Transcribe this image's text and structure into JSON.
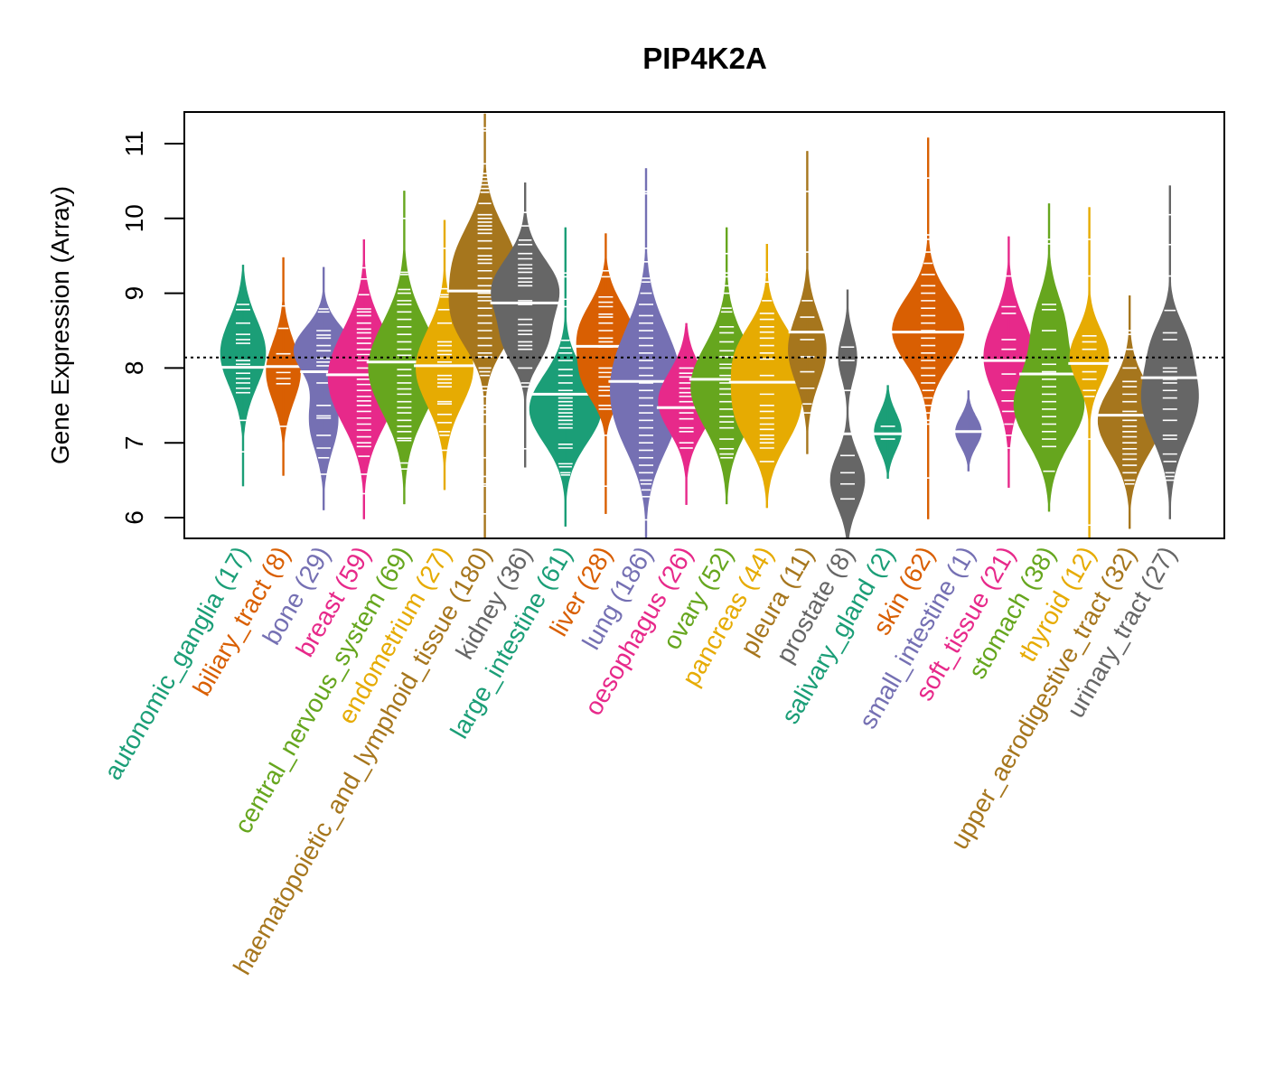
{
  "chart_data": {
    "type": "violin",
    "title": "PIP4K2A",
    "xlabel": "",
    "ylabel": "Gene Expression (Array)",
    "ylim": [
      5.7,
      11.4
    ],
    "yticks": [
      6,
      7,
      8,
      9,
      10,
      11
    ],
    "reference_line": 8.14,
    "grid": false,
    "legend": "none",
    "categories": [
      {
        "name": "autonomic_ganglia",
        "n": 17,
        "color": "#1B9E77",
        "min": 6.42,
        "max": 9.38,
        "median": 8.01,
        "modes": [
          [
            8.2,
            0.45,
            1.0
          ]
        ],
        "points": [
          8.85,
          8.78,
          8.6,
          8.45,
          8.38,
          8.33,
          8.1,
          8.05,
          7.93,
          7.86,
          7.8,
          7.73,
          7.67,
          7.3,
          6.88
        ]
      },
      {
        "name": "biliary_tract",
        "n": 8,
        "color": "#D95F02",
        "min": 6.56,
        "max": 9.48,
        "median": 8.02,
        "modes": [
          [
            7.95,
            0.4,
            1.0
          ]
        ],
        "points": [
          8.83,
          8.53,
          8.19,
          7.94,
          7.86,
          7.79,
          7.22
        ]
      },
      {
        "name": "bone",
        "n": 29,
        "color": "#7570B3",
        "min": 6.1,
        "max": 9.35,
        "median": 7.95,
        "modes": [
          [
            8.25,
            0.3,
            1.0
          ],
          [
            7.3,
            0.4,
            0.5
          ]
        ],
        "points": [
          8.79,
          8.75,
          8.5,
          8.44,
          8.4,
          8.3,
          8.23,
          8.13,
          8.08,
          8.03,
          7.8,
          7.5,
          7.36,
          7.33,
          7.1,
          6.93,
          6.8,
          6.58
        ]
      },
      {
        "name": "breast",
        "n": 59,
        "color": "#E7298A",
        "min": 5.98,
        "max": 9.72,
        "median": 7.91,
        "modes": [
          [
            8.2,
            0.5,
            0.7
          ],
          [
            7.6,
            0.5,
            0.8
          ]
        ],
        "points": [
          9.34,
          9.19,
          8.98,
          8.79,
          8.75,
          8.7,
          8.6,
          8.52,
          8.47,
          8.4,
          8.33,
          8.25,
          8.18,
          8.1,
          8.0,
          7.85,
          7.78,
          7.7,
          7.62,
          7.56,
          7.5,
          7.42,
          7.33,
          7.25,
          7.17,
          7.08,
          7.0,
          6.95,
          6.82,
          6.58,
          6.32
        ]
      },
      {
        "name": "central_nervous_system",
        "n": 69,
        "color": "#66A61E",
        "min": 6.18,
        "max": 10.37,
        "median": 8.08,
        "modes": [
          [
            8.0,
            0.6,
            1.0
          ]
        ],
        "points": [
          10.0,
          9.28,
          9.25,
          9.05,
          9.0,
          8.9,
          8.85,
          8.75,
          8.65,
          8.55,
          8.45,
          8.35,
          8.25,
          8.17,
          8.08,
          7.98,
          7.9,
          7.8,
          7.72,
          7.65,
          7.55,
          7.47,
          7.4,
          7.3,
          7.22,
          7.15,
          7.06,
          7.03,
          6.73,
          6.65
        ]
      },
      {
        "name": "endometrium",
        "n": 27,
        "color": "#E6AB02",
        "min": 6.37,
        "max": 9.98,
        "median": 8.03,
        "modes": [
          [
            8.0,
            0.5,
            1.0
          ]
        ],
        "points": [
          9.6,
          9.06,
          8.98,
          8.95,
          8.78,
          8.6,
          8.35,
          8.3,
          8.23,
          8.18,
          8.08,
          7.9,
          7.85,
          7.8,
          7.75,
          7.55,
          7.52,
          7.38,
          7.27,
          7.15,
          7.1,
          6.9
        ]
      },
      {
        "name": "haematopoietic_and_lymphoid_tissue",
        "n": 180,
        "color": "#A6761D",
        "min": 5.7,
        "max": 11.4,
        "median": 9.03,
        "modes": [
          [
            9.4,
            0.5,
            1.0
          ],
          [
            8.6,
            0.4,
            0.8
          ]
        ],
        "points": [
          11.21,
          11.17,
          10.73,
          10.6,
          10.55,
          10.5,
          10.45,
          10.4,
          10.35,
          10.2,
          10.05,
          10.0,
          9.95,
          9.9,
          9.85,
          9.8,
          9.7,
          9.6,
          9.5,
          9.45,
          9.4,
          9.3,
          9.2,
          9.1,
          9.0,
          8.95,
          8.9,
          8.8,
          8.7,
          8.6,
          8.5,
          8.4,
          8.3,
          8.2,
          8.15,
          8.0,
          7.95,
          7.9,
          7.75,
          7.7,
          7.62,
          7.5,
          7.45,
          7.38,
          7.25,
          6.8,
          6.55,
          6.45,
          6.42,
          6.05
        ]
      },
      {
        "name": "kidney",
        "n": 36,
        "color": "#666666",
        "min": 6.67,
        "max": 10.48,
        "median": 8.87,
        "modes": [
          [
            9.05,
            0.4,
            1.0
          ],
          [
            8.3,
            0.3,
            0.5
          ]
        ],
        "points": [
          10.08,
          9.9,
          9.71,
          9.65,
          9.53,
          9.46,
          9.38,
          9.33,
          9.28,
          9.2,
          9.15,
          9.1,
          8.9,
          8.85,
          8.65,
          8.58,
          8.5,
          8.45,
          8.35,
          8.3,
          8.25,
          8.0,
          7.8,
          7.75,
          6.92
        ]
      },
      {
        "name": "large_intestine",
        "n": 61,
        "color": "#1B9E77",
        "min": 5.88,
        "max": 9.88,
        "median": 7.65,
        "modes": [
          [
            7.45,
            0.45,
            1.0
          ]
        ],
        "points": [
          9.27,
          9.22,
          8.92,
          8.82,
          8.37,
          8.27,
          8.2,
          8.1,
          7.98,
          7.9,
          7.8,
          7.7,
          7.6,
          7.55,
          7.5,
          7.45,
          7.4,
          7.35,
          7.3,
          7.25,
          7.2,
          6.98,
          6.93,
          6.72,
          6.68,
          6.6,
          6.57
        ]
      },
      {
        "name": "liver",
        "n": 28,
        "color": "#D95F02",
        "min": 6.05,
        "max": 9.8,
        "median": 8.29,
        "modes": [
          [
            8.45,
            0.4,
            1.0
          ],
          [
            7.8,
            0.3,
            0.6
          ]
        ],
        "points": [
          9.3,
          9.22,
          8.95,
          8.88,
          8.82,
          8.72,
          8.68,
          8.6,
          8.5,
          8.4,
          8.35,
          8.28,
          8.0,
          7.94,
          7.88,
          7.75,
          7.7,
          7.63,
          7.5,
          7.45,
          7.1,
          6.42
        ]
      },
      {
        "name": "lung",
        "n": 186,
        "color": "#7570B3",
        "min": 5.7,
        "max": 10.67,
        "median": 7.82,
        "modes": [
          [
            8.0,
            0.6,
            1.0
          ],
          [
            7.2,
            0.5,
            0.6
          ]
        ],
        "points": [
          10.36,
          10.33,
          9.6,
          9.42,
          9.2,
          9.15,
          9.0,
          8.85,
          8.7,
          8.6,
          8.5,
          8.4,
          8.3,
          8.2,
          8.1,
          8.0,
          7.9,
          7.8,
          7.7,
          7.6,
          7.5,
          7.4,
          7.3,
          7.2,
          7.1,
          7.0,
          6.9,
          6.8,
          6.7,
          6.6,
          6.5,
          6.45,
          6.37,
          6.28,
          5.97
        ]
      },
      {
        "name": "oesophagus",
        "n": 26,
        "color": "#E7298A",
        "min": 6.17,
        "max": 8.6,
        "median": 7.47,
        "modes": [
          [
            7.55,
            0.4,
            1.0
          ]
        ],
        "points": [
          8.0,
          7.93,
          7.88,
          7.8,
          7.73,
          7.67,
          7.62,
          7.55,
          7.4,
          7.32,
          7.2,
          7.15,
          7.0,
          6.93
        ]
      },
      {
        "name": "ovary",
        "n": 52,
        "color": "#66A61E",
        "min": 6.18,
        "max": 9.88,
        "median": 7.85,
        "modes": [
          [
            7.75,
            0.55,
            1.0
          ]
        ],
        "points": [
          9.53,
          9.27,
          9.22,
          9.1,
          9.0,
          8.8,
          8.75,
          8.55,
          8.47,
          8.35,
          8.23,
          8.15,
          8.05,
          8.0,
          7.9,
          7.8,
          7.72,
          7.65,
          7.55,
          7.45,
          7.35,
          7.28,
          7.2,
          7.05,
          6.92,
          6.85,
          6.8
        ]
      },
      {
        "name": "pancreas",
        "n": 44,
        "color": "#E6AB02",
        "min": 6.13,
        "max": 9.66,
        "median": 7.81,
        "modes": [
          [
            8.2,
            0.4,
            0.8
          ],
          [
            7.4,
            0.45,
            0.9
          ]
        ],
        "points": [
          9.28,
          9.15,
          8.9,
          8.73,
          8.65,
          8.55,
          8.48,
          8.4,
          8.3,
          8.2,
          8.12,
          7.9,
          7.65,
          7.5,
          7.42,
          7.33,
          7.25,
          7.18,
          7.1,
          7.05,
          7.0,
          6.93,
          6.75
        ]
      },
      {
        "name": "pleura",
        "n": 11,
        "color": "#A6761D",
        "min": 6.85,
        "max": 10.9,
        "median": 8.48,
        "modes": [
          [
            8.25,
            0.45,
            1.0
          ]
        ],
        "points": [
          10.36,
          9.55,
          8.9,
          8.68,
          8.38,
          8.15,
          7.95,
          7.73,
          7.52,
          7.4
        ]
      },
      {
        "name": "prostate",
        "n": 8,
        "color": "#666666",
        "min": 5.72,
        "max": 9.05,
        "median": 7.12,
        "modes": [
          [
            8.15,
            0.3,
            0.55
          ],
          [
            6.5,
            0.35,
            1.0
          ]
        ],
        "points": [
          8.28,
          8.1,
          7.7,
          6.83,
          6.6,
          6.45,
          6.25
        ]
      },
      {
        "name": "salivary_gland",
        "n": 2,
        "color": "#1B9E77",
        "min": 6.52,
        "max": 7.77,
        "median": 7.12,
        "modes": [
          [
            7.15,
            0.25,
            1.0
          ]
        ],
        "points": [
          7.22,
          7.05
        ]
      },
      {
        "name": "skin",
        "n": 62,
        "color": "#D95F02",
        "min": 5.98,
        "max": 11.08,
        "median": 8.48,
        "modes": [
          [
            8.5,
            0.45,
            1.0
          ]
        ],
        "points": [
          10.54,
          9.78,
          9.72,
          9.55,
          9.4,
          9.25,
          9.1,
          9.0,
          8.9,
          8.8,
          8.7,
          8.6,
          8.5,
          8.4,
          8.3,
          8.2,
          8.1,
          8.0,
          7.9,
          7.8,
          7.7,
          7.6,
          7.5,
          7.4,
          7.3,
          7.25,
          6.53
        ]
      },
      {
        "name": "small_intestine",
        "n": 1,
        "color": "#7570B3",
        "min": 6.62,
        "max": 7.7,
        "median": 7.15,
        "modes": [
          [
            7.15,
            0.2,
            1.0
          ]
        ],
        "points": [
          7.15
        ]
      },
      {
        "name": "soft_tissue",
        "n": 21,
        "color": "#E7298A",
        "min": 6.4,
        "max": 9.76,
        "median": 8.1,
        "modes": [
          [
            8.15,
            0.5,
            1.0
          ]
        ],
        "points": [
          9.23,
          8.82,
          8.73,
          8.38,
          8.25,
          8.1,
          7.92,
          7.7,
          7.56,
          7.42,
          7.25,
          7.1,
          6.93
        ]
      },
      {
        "name": "stomach",
        "n": 38,
        "color": "#66A61E",
        "min": 6.08,
        "max": 10.2,
        "median": 7.92,
        "modes": [
          [
            7.5,
            0.5,
            1.0
          ],
          [
            8.6,
            0.4,
            0.4
          ]
        ],
        "points": [
          9.72,
          9.66,
          8.85,
          8.78,
          8.5,
          8.25,
          8.05,
          7.95,
          7.85,
          7.75,
          7.65,
          7.55,
          7.45,
          7.35,
          7.25,
          7.15,
          7.05,
          6.95,
          6.62
        ]
      },
      {
        "name": "thyroid",
        "n": 12,
        "color": "#E6AB02",
        "min": 5.7,
        "max": 10.15,
        "median": 8.06,
        "modes": [
          [
            8.15,
            0.35,
            1.0
          ]
        ],
        "points": [
          9.72,
          9.23,
          8.43,
          8.35,
          8.25,
          7.95,
          7.85,
          7.7,
          7.62,
          7.05,
          5.9
        ]
      },
      {
        "name": "upper_aerodigestive_tract",
        "n": 32,
        "color": "#A6761D",
        "min": 5.85,
        "max": 8.97,
        "median": 7.37,
        "modes": [
          [
            7.3,
            0.45,
            1.0
          ]
        ],
        "points": [
          8.5,
          8.45,
          8.25,
          8.0,
          7.82,
          7.75,
          7.65,
          7.55,
          7.42,
          7.3,
          7.22,
          7.15,
          7.08,
          7.0,
          6.92,
          6.85,
          6.78,
          6.7,
          6.6,
          6.5,
          6.45
        ]
      },
      {
        "name": "urinary_tract",
        "n": 27,
        "color": "#666666",
        "min": 5.98,
        "max": 10.44,
        "median": 7.87,
        "modes": [
          [
            7.6,
            0.55,
            1.0
          ],
          [
            8.4,
            0.3,
            0.3
          ]
        ],
        "points": [
          10.05,
          9.65,
          9.23,
          8.77,
          8.47,
          8.38,
          8.0,
          7.95,
          7.85,
          7.8,
          7.7,
          7.6,
          7.45,
          7.3,
          7.1,
          7.05,
          6.85,
          6.75,
          6.6,
          6.55,
          6.5
        ]
      }
    ]
  }
}
